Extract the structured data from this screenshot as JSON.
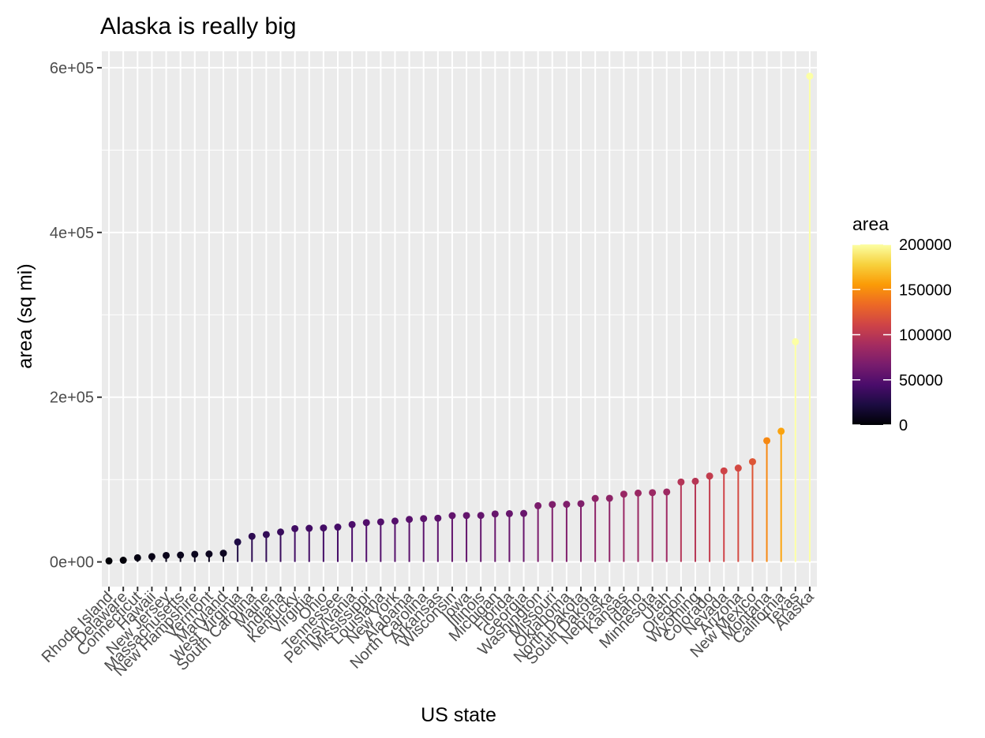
{
  "chart_data": {
    "type": "lollipop",
    "title": "Alaska is really big",
    "xlabel": "US state",
    "ylabel": "area (sq mi)",
    "ylim": [
      -30000,
      620000
    ],
    "y_ticks": [
      0,
      200000,
      400000,
      600000
    ],
    "y_tick_labels": [
      "0e+00",
      "2e+05",
      "4e+05",
      "6e+05"
    ],
    "grid": true,
    "categories": [
      "Rhode Island",
      "Delaware",
      "Connecticut",
      "Hawaii",
      "New Jersey",
      "Massachusetts",
      "New Hampshire",
      "Vermont",
      "Maryland",
      "West Virginia",
      "South Carolina",
      "Maine",
      "Indiana",
      "Kentucky",
      "Virginia",
      "Ohio",
      "Tennessee",
      "Pennsylvania",
      "Mississippi",
      "Louisiana",
      "New York",
      "Alabama",
      "North Carolina",
      "Arkansas",
      "Wisconsin",
      "Iowa",
      "Illinois",
      "Michigan",
      "Florida",
      "Georgia",
      "Washington",
      "Missouri",
      "Oklahoma",
      "North Dakota",
      "South Dakota",
      "Nebraska",
      "Kansas",
      "Idaho",
      "Minnesota",
      "Utah",
      "Oregon",
      "Wyoming",
      "Colorado",
      "Nevada",
      "Arizona",
      "New Mexico",
      "Montana",
      "California",
      "Texas",
      "Alaska"
    ],
    "values": [
      1214,
      2057,
      5009,
      6450,
      7836,
      8257,
      9304,
      9609,
      10577,
      24181,
      31055,
      33215,
      36291,
      40395,
      40815,
      41222,
      42244,
      45333,
      47716,
      48523,
      49576,
      51609,
      52586,
      53104,
      56154,
      56290,
      56400,
      58216,
      58560,
      58876,
      68192,
      69686,
      69919,
      70665,
      77047,
      77227,
      82264,
      83557,
      84068,
      84916,
      96981,
      97914,
      104247,
      110540,
      113909,
      121666,
      147138,
      158693,
      267339,
      589757
    ],
    "legend": {
      "title": "area",
      "position": "right",
      "range": [
        0,
        200000
      ],
      "breaks": [
        0,
        50000,
        100000,
        150000,
        200000
      ],
      "break_labels": [
        "0",
        "50000",
        "100000",
        "150000",
        "200000"
      ],
      "colormap": "inferno",
      "stops": [
        "#000004",
        "#1b0c41",
        "#4a0c6b",
        "#781c6d",
        "#a52c60",
        "#cf4446",
        "#ed6925",
        "#fb9b06",
        "#f7d13d",
        "#fcffa4"
      ]
    },
    "panel_background": "#ebebeb",
    "grid_color": "#ffffff"
  }
}
